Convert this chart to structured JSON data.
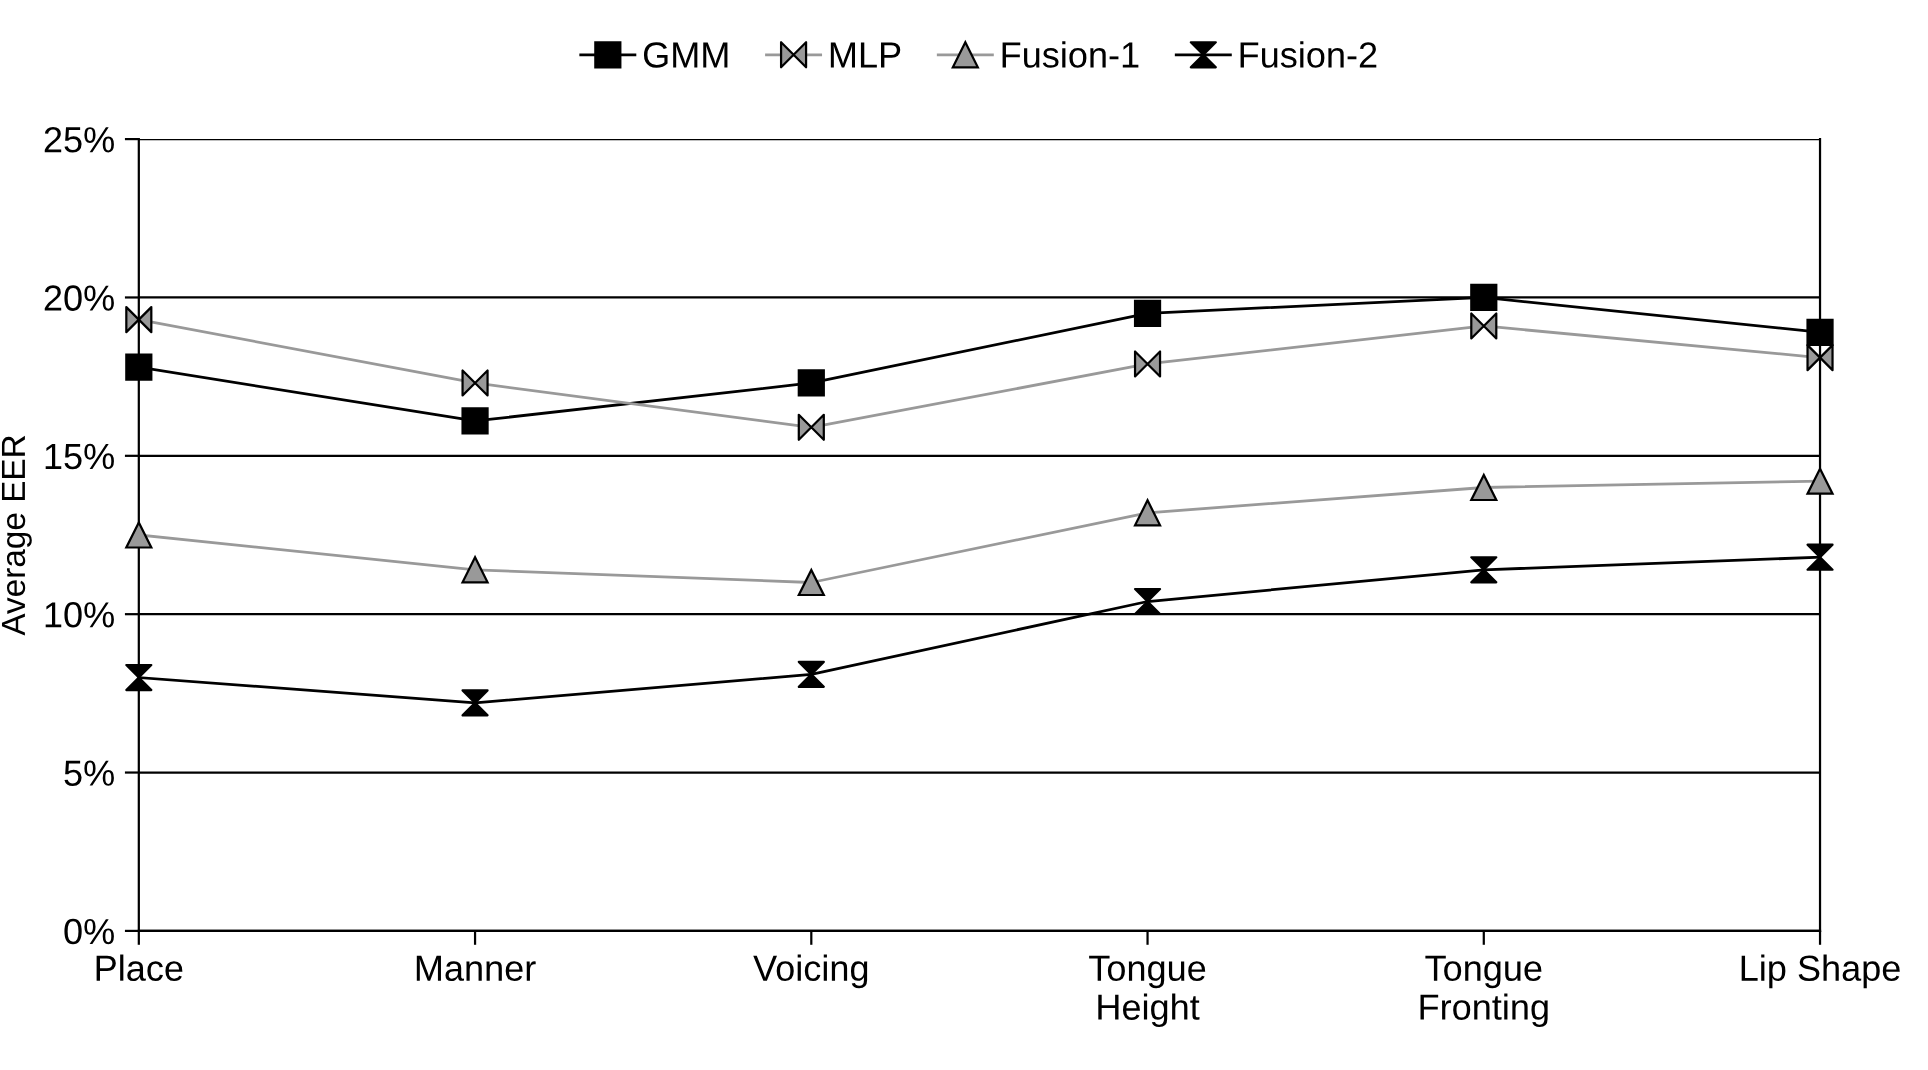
{
  "chart_data": {
    "type": "line",
    "ylabel": "Average EER",
    "categories": [
      "Place",
      "Manner",
      "Voicing",
      "Tongue\nHeight",
      "Tongue\nFronting",
      "Lip Shape"
    ],
    "series": [
      {
        "name": "GMM",
        "color": "#000000",
        "marker": "square",
        "values": [
          17.8,
          16.1,
          17.3,
          19.5,
          20.0,
          18.9
        ]
      },
      {
        "name": "MLP",
        "color": "#999999",
        "marker": "diamond",
        "values": [
          19.3,
          17.3,
          15.9,
          17.9,
          19.1,
          18.1
        ]
      },
      {
        "name": "Fusion-1",
        "color": "#999999",
        "marker": "triangle",
        "values": [
          12.5,
          11.4,
          11.0,
          13.2,
          14.0,
          14.2
        ]
      },
      {
        "name": "Fusion-2",
        "color": "#000000",
        "marker": "diamond",
        "values": [
          8.0,
          7.2,
          8.1,
          10.4,
          11.4,
          11.8
        ]
      }
    ],
    "ylim": [
      0,
      25
    ],
    "yticks": [
      {
        "value": 0,
        "label": "0%"
      },
      {
        "value": 5,
        "label": "5%"
      },
      {
        "value": 10,
        "label": "10%"
      },
      {
        "value": 15,
        "label": "15%"
      },
      {
        "value": 20,
        "label": "20%"
      },
      {
        "value": 25,
        "label": "25%"
      }
    ],
    "grid": "y",
    "legend": "top"
  }
}
